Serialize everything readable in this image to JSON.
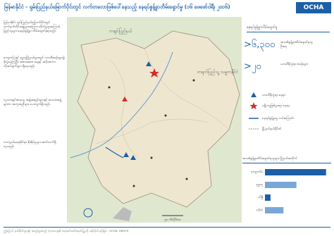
{
  "header": {
    "title": "မြန်မာနိုင်ငံ - ရှမ်းပြည်နယ်မြောက်ပိုင်းတွင် လက်တလောဖြစ်ပေါ်နေသည့် နေရပ်စွန့်ခွာတိမ်းရှောင်မှု (၁၆ ဖေဖော်ဝါရီ၊ ၂၀၁၆)",
    "logo": "OCHA"
  },
  "summary": {
    "paragraphs": [
      "မြန်မာနိုင်ငံ ရှမ်းပြည်နယ်မြောက်ပိုင်းတွင် လက်နက်ကိုင်အဖွဲ့များအကြား တိုက်ပွဲများကြောင့် ပြည်သူများ နေရပ်စွန့်ခွာ တိမ်းရှောင်ခဲ့ရသည်။",
      "ကျောက်မဲနှင့် နမ္မတူမြို့နယ်များတွင် ယာယီစခန်းများ၌ ခိုလှုံနေကြပြီး အစားအစာ၊ ရေနှင့် အမိုးအကာ လိုအပ်ချက်များ ရှိနေသည်။",
      "လူသားချင်းစာနာမှု အဖွဲ့အစည်းများနှင့် ဒေသခံအဖွဲ့များက အကူအညီများ ပေးလျက်ရှိသည်။",
      "ကာကွယ်ရေးဆိုင်ရာ စိုးရိမ်မှုများ ဆက်လက်ရှိနေသည်။"
    ]
  },
  "map": {
    "labels": [
      "ကချင်ပြည်နယ်",
      "တရုတ်ပြည်သူ့ သမ္မတနိုင်ငံ"
    ],
    "scale": "၅၀ ကီလိုမီတာ"
  },
  "key_figures_title": "နေရပ်စွန့်ခွာတိမ်းရှောင်မှု",
  "key_figures": [
    {
      "value": ">၆,၃၀၀",
      "label": "အသစ်စွန့်ခွာတိမ်းရှောင်ရသူ ဦးရေ"
    },
    {
      "value": ">၂၀",
      "label": "ယာယီခိုလှုံရာ စခန်းများ"
    }
  ],
  "legend": [
    "ယာယီခိုလှုံရာ နေရာ",
    "ပဋိပက္ခဖြစ်ပွားရာ နေရာ",
    "နေရပ်စွန့်ခွာမှု လမ်းကြောင်း",
    "မြို့နယ်နယ်နိမိတ်"
  ],
  "bar_chart": {
    "title": "အသစ်စွန့်ခွာတိမ်းရှောင်ရသူများ မြို့နယ်အလိုက်",
    "categories": [
      "ကျောက်မဲ",
      "နမ္မတူ",
      "သိန္နီ",
      "မန်တုံ"
    ],
    "values": [
      3300,
      1700,
      300,
      1000
    ],
    "xlim": [
      0,
      3500
    ]
  },
  "footer": "ဤမြေပုံပါ နယ်နိမိတ်များနှင့် အမည်များသည် ကုလသမဂ္ဂ၏ တရားဝင်အသိအမှတ်ပြုမှုကို မဆိုလိုပါ။ ရင်းမြစ် - OCHA, UNHCR"
}
